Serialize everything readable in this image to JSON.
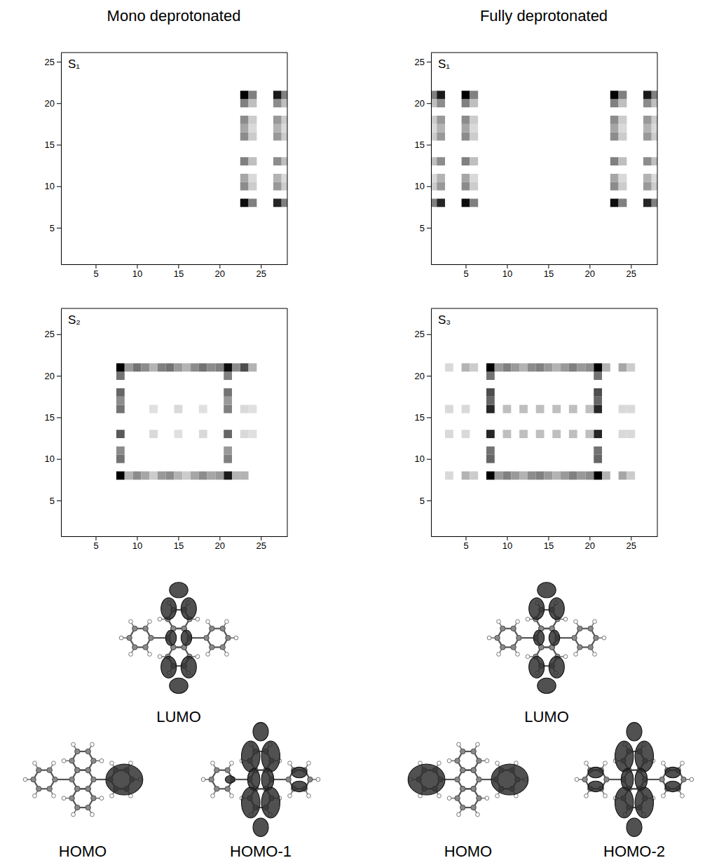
{
  "header": {
    "columns": [
      "Mono deprotonated",
      "Fully deprotonated"
    ]
  },
  "chart_data": [
    {
      "type": "heatmap",
      "title": "S₁",
      "xlim": [
        0.8,
        28.2
      ],
      "ylim": [
        0.6,
        26.1
      ],
      "xticks": [
        5,
        10,
        15,
        20,
        25
      ],
      "yticks": [
        5,
        10,
        15,
        20,
        25
      ],
      "zlim": [
        0,
        1
      ],
      "cells": [
        [
          23,
          8,
          0.95
        ],
        [
          23,
          10,
          0.45
        ],
        [
          23,
          11,
          0.35
        ],
        [
          23,
          13,
          0.5
        ],
        [
          23,
          16,
          0.45
        ],
        [
          23,
          17,
          0.35
        ],
        [
          23,
          18,
          0.45
        ],
        [
          23,
          20,
          0.5
        ],
        [
          23,
          21,
          1.0
        ],
        [
          24,
          8,
          0.5
        ],
        [
          24,
          10,
          0.2
        ],
        [
          24,
          11,
          0.15
        ],
        [
          24,
          13,
          0.25
        ],
        [
          24,
          16,
          0.2
        ],
        [
          24,
          17,
          0.15
        ],
        [
          24,
          18,
          0.2
        ],
        [
          24,
          20,
          0.25
        ],
        [
          24,
          21,
          0.5
        ],
        [
          27,
          8,
          0.85
        ],
        [
          27,
          10,
          0.4
        ],
        [
          27,
          11,
          0.3
        ],
        [
          27,
          13,
          0.45
        ],
        [
          27,
          16,
          0.4
        ],
        [
          27,
          17,
          0.3
        ],
        [
          27,
          18,
          0.4
        ],
        [
          27,
          20,
          0.45
        ],
        [
          27,
          21,
          0.9
        ],
        [
          28,
          8,
          0.5
        ],
        [
          28,
          10,
          0.2
        ],
        [
          28,
          11,
          0.15
        ],
        [
          28,
          13,
          0.25
        ],
        [
          28,
          16,
          0.2
        ],
        [
          28,
          17,
          0.15
        ],
        [
          28,
          18,
          0.2
        ],
        [
          28,
          20,
          0.25
        ],
        [
          28,
          21,
          0.5
        ]
      ]
    },
    {
      "type": "heatmap",
      "title": "S₁",
      "xlim": [
        0.8,
        28.2
      ],
      "ylim": [
        0.6,
        26.1
      ],
      "xticks": [
        5,
        10,
        15,
        20,
        25
      ],
      "yticks": [
        5,
        10,
        15,
        20,
        25
      ],
      "zlim": [
        0,
        1
      ],
      "cells": [
        [
          1,
          8,
          0.5
        ],
        [
          1,
          10,
          0.2
        ],
        [
          1,
          11,
          0.15
        ],
        [
          1,
          13,
          0.25
        ],
        [
          1,
          16,
          0.2
        ],
        [
          1,
          17,
          0.15
        ],
        [
          1,
          18,
          0.2
        ],
        [
          1,
          20,
          0.25
        ],
        [
          1,
          21,
          0.5
        ],
        [
          2,
          8,
          0.85
        ],
        [
          2,
          10,
          0.4
        ],
        [
          2,
          11,
          0.3
        ],
        [
          2,
          13,
          0.45
        ],
        [
          2,
          16,
          0.4
        ],
        [
          2,
          17,
          0.3
        ],
        [
          2,
          18,
          0.4
        ],
        [
          2,
          20,
          0.45
        ],
        [
          2,
          21,
          0.9
        ],
        [
          5,
          8,
          0.95
        ],
        [
          5,
          10,
          0.45
        ],
        [
          5,
          11,
          0.35
        ],
        [
          5,
          13,
          0.5
        ],
        [
          5,
          16,
          0.45
        ],
        [
          5,
          17,
          0.35
        ],
        [
          5,
          18,
          0.45
        ],
        [
          5,
          20,
          0.5
        ],
        [
          5,
          21,
          1.0
        ],
        [
          6,
          8,
          0.5
        ],
        [
          6,
          10,
          0.2
        ],
        [
          6,
          11,
          0.15
        ],
        [
          6,
          13,
          0.25
        ],
        [
          6,
          16,
          0.2
        ],
        [
          6,
          17,
          0.15
        ],
        [
          6,
          18,
          0.2
        ],
        [
          6,
          20,
          0.25
        ],
        [
          6,
          21,
          0.5
        ],
        [
          23,
          8,
          0.95
        ],
        [
          23,
          10,
          0.45
        ],
        [
          23,
          11,
          0.35
        ],
        [
          23,
          13,
          0.5
        ],
        [
          23,
          16,
          0.45
        ],
        [
          23,
          17,
          0.35
        ],
        [
          23,
          18,
          0.45
        ],
        [
          23,
          20,
          0.5
        ],
        [
          23,
          21,
          1.0
        ],
        [
          24,
          8,
          0.5
        ],
        [
          24,
          10,
          0.2
        ],
        [
          24,
          11,
          0.15
        ],
        [
          24,
          13,
          0.25
        ],
        [
          24,
          16,
          0.2
        ],
        [
          24,
          17,
          0.15
        ],
        [
          24,
          18,
          0.2
        ],
        [
          24,
          20,
          0.25
        ],
        [
          24,
          21,
          0.5
        ],
        [
          27,
          8,
          0.85
        ],
        [
          27,
          10,
          0.4
        ],
        [
          27,
          11,
          0.3
        ],
        [
          27,
          13,
          0.45
        ],
        [
          27,
          16,
          0.4
        ],
        [
          27,
          17,
          0.3
        ],
        [
          27,
          18,
          0.4
        ],
        [
          27,
          20,
          0.45
        ],
        [
          27,
          21,
          0.9
        ],
        [
          28,
          8,
          0.5
        ],
        [
          28,
          10,
          0.2
        ],
        [
          28,
          11,
          0.15
        ],
        [
          28,
          13,
          0.25
        ],
        [
          28,
          16,
          0.2
        ],
        [
          28,
          17,
          0.15
        ],
        [
          28,
          18,
          0.2
        ],
        [
          28,
          20,
          0.25
        ],
        [
          28,
          21,
          0.5
        ]
      ]
    },
    {
      "type": "heatmap",
      "title": "S₂",
      "xlim": [
        0.8,
        28.2
      ],
      "ylim": [
        0.7,
        28.1
      ],
      "xticks": [
        5,
        10,
        15,
        20,
        25
      ],
      "yticks": [
        5,
        10,
        15,
        20,
        25
      ],
      "zlim": [
        0,
        1
      ],
      "cells": [
        [
          8,
          8,
          1.0
        ],
        [
          8,
          10,
          0.55
        ],
        [
          8,
          11,
          0.45
        ],
        [
          8,
          13,
          0.65
        ],
        [
          8,
          16,
          0.55
        ],
        [
          8,
          17,
          0.45
        ],
        [
          8,
          18,
          0.6
        ],
        [
          8,
          20,
          0.55
        ],
        [
          8,
          21,
          1.0
        ],
        [
          21,
          8,
          0.9
        ],
        [
          21,
          10,
          0.5
        ],
        [
          21,
          11,
          0.4
        ],
        [
          21,
          13,
          0.6
        ],
        [
          21,
          16,
          0.5
        ],
        [
          21,
          17,
          0.4
        ],
        [
          21,
          18,
          0.55
        ],
        [
          21,
          20,
          0.5
        ],
        [
          21,
          21,
          0.95
        ],
        [
          23,
          8,
          0.3
        ],
        [
          23,
          13,
          0.15
        ],
        [
          23,
          16,
          0.15
        ],
        [
          23,
          21,
          0.7
        ],
        [
          9,
          8,
          0.3
        ],
        [
          10,
          8,
          0.45
        ],
        [
          11,
          8,
          0.35
        ],
        [
          12,
          8,
          0.2
        ],
        [
          13,
          8,
          0.4
        ],
        [
          14,
          8,
          0.45
        ],
        [
          15,
          8,
          0.3
        ],
        [
          16,
          8,
          0.2
        ],
        [
          17,
          8,
          0.35
        ],
        [
          18,
          8,
          0.45
        ],
        [
          19,
          8,
          0.35
        ],
        [
          20,
          8,
          0.4
        ],
        [
          22,
          8,
          0.3
        ],
        [
          9,
          21,
          0.4
        ],
        [
          10,
          21,
          0.55
        ],
        [
          11,
          21,
          0.45
        ],
        [
          12,
          21,
          0.3
        ],
        [
          13,
          21,
          0.5
        ],
        [
          14,
          21,
          0.55
        ],
        [
          15,
          21,
          0.4
        ],
        [
          16,
          21,
          0.3
        ],
        [
          17,
          21,
          0.45
        ],
        [
          18,
          21,
          0.55
        ],
        [
          19,
          21,
          0.45
        ],
        [
          20,
          21,
          0.5
        ],
        [
          22,
          21,
          0.45
        ],
        [
          24,
          21,
          0.3
        ],
        [
          12,
          13,
          0.15
        ],
        [
          15,
          13,
          0.12
        ],
        [
          18,
          13,
          0.15
        ],
        [
          12,
          16,
          0.12
        ],
        [
          15,
          16,
          0.15
        ],
        [
          18,
          16,
          0.12
        ],
        [
          24,
          13,
          0.12
        ],
        [
          24,
          16,
          0.12
        ]
      ]
    },
    {
      "type": "heatmap",
      "title": "S₃",
      "xlim": [
        0.8,
        28.2
      ],
      "ylim": [
        0.7,
        28.1
      ],
      "xticks": [
        5,
        10,
        15,
        20,
        25
      ],
      "yticks": [
        5,
        10,
        15,
        20,
        25
      ],
      "zlim": [
        0,
        1
      ],
      "cells": [
        [
          8,
          8,
          1.0
        ],
        [
          8,
          10,
          0.6
        ],
        [
          8,
          11,
          0.55
        ],
        [
          8,
          13,
          0.85
        ],
        [
          8,
          16,
          0.85
        ],
        [
          8,
          17,
          0.6
        ],
        [
          8,
          18,
          0.7
        ],
        [
          8,
          20,
          0.55
        ],
        [
          8,
          21,
          1.0
        ],
        [
          21,
          8,
          1.0
        ],
        [
          21,
          10,
          0.6
        ],
        [
          21,
          11,
          0.55
        ],
        [
          21,
          13,
          0.85
        ],
        [
          21,
          16,
          0.85
        ],
        [
          21,
          17,
          0.6
        ],
        [
          21,
          18,
          0.7
        ],
        [
          21,
          20,
          0.55
        ],
        [
          21,
          21,
          1.0
        ],
        [
          3,
          8,
          0.15
        ],
        [
          5,
          8,
          0.3
        ],
        [
          6,
          8,
          0.2
        ],
        [
          9,
          8,
          0.4
        ],
        [
          10,
          8,
          0.5
        ],
        [
          11,
          8,
          0.4
        ],
        [
          12,
          8,
          0.3
        ],
        [
          13,
          8,
          0.45
        ],
        [
          14,
          8,
          0.5
        ],
        [
          15,
          8,
          0.4
        ],
        [
          16,
          8,
          0.3
        ],
        [
          17,
          8,
          0.4
        ],
        [
          18,
          8,
          0.5
        ],
        [
          19,
          8,
          0.4
        ],
        [
          20,
          8,
          0.45
        ],
        [
          22,
          8,
          0.3
        ],
        [
          24,
          8,
          0.35
        ],
        [
          25,
          8,
          0.2
        ],
        [
          3,
          21,
          0.15
        ],
        [
          5,
          21,
          0.3
        ],
        [
          6,
          21,
          0.2
        ],
        [
          9,
          21,
          0.4
        ],
        [
          10,
          21,
          0.5
        ],
        [
          11,
          21,
          0.4
        ],
        [
          12,
          21,
          0.3
        ],
        [
          13,
          21,
          0.45
        ],
        [
          14,
          21,
          0.5
        ],
        [
          15,
          21,
          0.4
        ],
        [
          16,
          21,
          0.3
        ],
        [
          17,
          21,
          0.4
        ],
        [
          18,
          21,
          0.5
        ],
        [
          19,
          21,
          0.4
        ],
        [
          20,
          21,
          0.45
        ],
        [
          22,
          21,
          0.3
        ],
        [
          24,
          21,
          0.35
        ],
        [
          25,
          21,
          0.2
        ],
        [
          10,
          13,
          0.25
        ],
        [
          12,
          13,
          0.25
        ],
        [
          14,
          13,
          0.25
        ],
        [
          16,
          13,
          0.25
        ],
        [
          18,
          13,
          0.25
        ],
        [
          20,
          13,
          0.25
        ],
        [
          10,
          16,
          0.25
        ],
        [
          12,
          16,
          0.25
        ],
        [
          14,
          16,
          0.25
        ],
        [
          16,
          16,
          0.25
        ],
        [
          18,
          16,
          0.25
        ],
        [
          20,
          16,
          0.25
        ],
        [
          3,
          13,
          0.15
        ],
        [
          5,
          13,
          0.15
        ],
        [
          24,
          13,
          0.15
        ],
        [
          25,
          13,
          0.15
        ],
        [
          3,
          16,
          0.15
        ],
        [
          5,
          16,
          0.15
        ],
        [
          24,
          16,
          0.15
        ],
        [
          25,
          16,
          0.15
        ]
      ]
    }
  ],
  "orbitals": [
    {
      "top": "LUMO",
      "bottom": [
        "HOMO",
        "HOMO-1"
      ]
    },
    {
      "top": "LUMO",
      "bottom": [
        "HOMO",
        "HOMO-2"
      ]
    }
  ]
}
